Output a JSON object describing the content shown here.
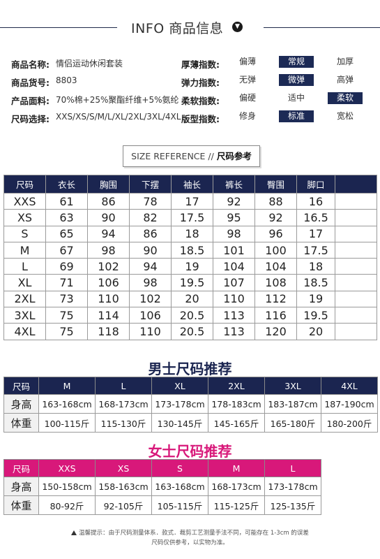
{
  "header": {
    "title": "INFO 商品信息",
    "icon": "chevron-down-icon"
  },
  "product_info": [
    {
      "label": "商品名称:",
      "value": "情侣运动休闲套装"
    },
    {
      "label": "商品货号:",
      "value": "8803"
    },
    {
      "label": "产品面料:",
      "value": "70%棉+25%聚酯纤维+5%氨纶"
    },
    {
      "label": "尺码选择:",
      "value": "XXS/XS/S/M/L/XL/2XL/3XL/4XL"
    }
  ],
  "indices": [
    {
      "label": "厚薄指数:",
      "options": [
        "偏薄",
        "常规",
        "加厚"
      ],
      "selected": 1
    },
    {
      "label": "弹力指数:",
      "options": [
        "无弹",
        "微弹",
        "高弹"
      ],
      "selected": 1
    },
    {
      "label": "柔软指数:",
      "options": [
        "偏硬",
        "适中",
        "柔软"
      ],
      "selected": 2
    },
    {
      "label": "版型指数:",
      "options": [
        "修身",
        "标准",
        "宽松"
      ],
      "selected": 1
    }
  ],
  "size_reference": {
    "en": "SIZE REFERENCE",
    "sep": "//",
    "cn": "尺码参考"
  },
  "size_table": {
    "headers": [
      "尺码",
      "衣长",
      "胸围",
      "下摆",
      "袖长",
      "裤长",
      "臀围",
      "脚口",
      ""
    ],
    "rows": [
      [
        "XXS",
        "61",
        "86",
        "78",
        "17",
        "92",
        "88",
        "16",
        ""
      ],
      [
        "XS",
        "63",
        "90",
        "82",
        "17.5",
        "95",
        "92",
        "16.5",
        ""
      ],
      [
        "S",
        "65",
        "94",
        "86",
        "18",
        "98",
        "96",
        "17",
        ""
      ],
      [
        "M",
        "67",
        "98",
        "90",
        "18.5",
        "101",
        "100",
        "17.5",
        ""
      ],
      [
        "L",
        "69",
        "102",
        "94",
        "19",
        "104",
        "104",
        "18",
        ""
      ],
      [
        "XL",
        "71",
        "106",
        "98",
        "19.5",
        "107",
        "108",
        "18.5",
        ""
      ],
      [
        "2XL",
        "73",
        "110",
        "102",
        "20",
        "110",
        "112",
        "19",
        ""
      ],
      [
        "3XL",
        "75",
        "114",
        "106",
        "20.5",
        "113",
        "116",
        "19.5",
        ""
      ],
      [
        "4XL",
        "75",
        "118",
        "110",
        "20.5",
        "113",
        "120",
        "20",
        ""
      ]
    ]
  },
  "men": {
    "title": "男士尺码推荐",
    "headers": [
      "尺码",
      "M",
      "L",
      "XL",
      "2XL",
      "3XL",
      "4XL"
    ],
    "rows": [
      [
        "身高",
        "163-168cm",
        "168-173cm",
        "173-178cm",
        "178-183cm",
        "183-187cm",
        "187-190cm"
      ],
      [
        "体重",
        "100-115斤",
        "115-130斤",
        "130-145斤",
        "145-165斤",
        "165-180斤",
        "180-200斤"
      ]
    ]
  },
  "women": {
    "title": "女士尺码推荐",
    "headers": [
      "尺码",
      "XXS",
      "XS",
      "S",
      "M",
      "L",
      ""
    ],
    "rows": [
      [
        "身高",
        "150-158cm",
        "158-163cm",
        "163-168cm",
        "168-173cm",
        "173-178cm",
        ""
      ],
      [
        "体重",
        "80-92斤",
        "92-105斤",
        "105-115斤",
        "115-125斤",
        "125-135斤",
        ""
      ]
    ]
  },
  "note": {
    "line1": "温馨提示：由于尺码测量体系．款式．裁剪工艺测量手法不同，可能存在 1-3cm 的误差",
    "line2": "尺码仅供参考，以实物为准。"
  }
}
